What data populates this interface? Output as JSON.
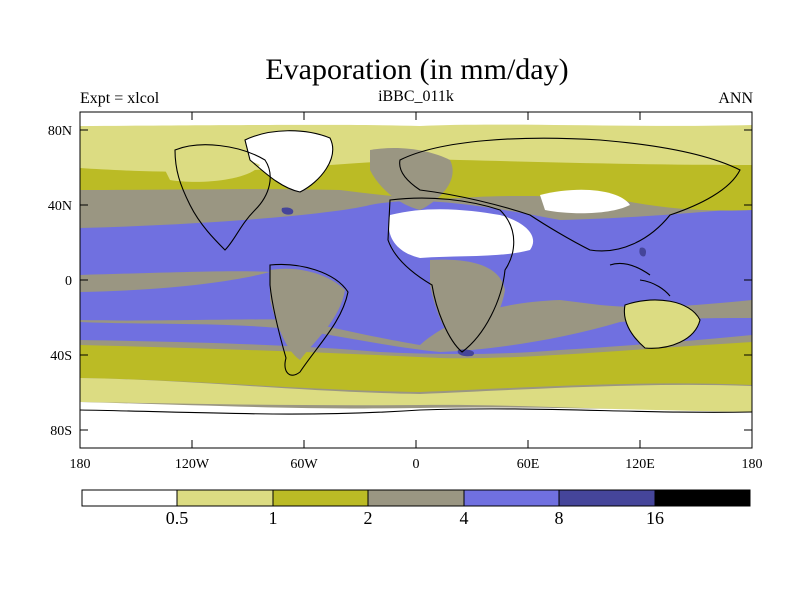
{
  "title": "Evaporation (in mm/day)",
  "subtitle_left": "Expt = xlcol",
  "subtitle_center": "iBBC_011k",
  "subtitle_right": "ANN",
  "lat_labels": [
    "80N",
    "40N",
    "0",
    "40S",
    "80S"
  ],
  "lon_labels": [
    "180",
    "120W",
    "60W",
    "0",
    "60E",
    "120E",
    "180"
  ],
  "colorbar": {
    "colors": [
      "#ffffff",
      "#dcdc82",
      "#bbbb25",
      "#9a9682",
      "#7070e0",
      "#45459a",
      "#000000"
    ],
    "boundaries": [
      "0.5",
      "1",
      "2",
      "4",
      "8",
      "16"
    ]
  },
  "palette": {
    "white": "#ffffff",
    "pale": "#dcdc82",
    "olive": "#bbbb25",
    "gray": "#9a9682",
    "blue": "#7070e0",
    "navy": "#45459a"
  }
}
